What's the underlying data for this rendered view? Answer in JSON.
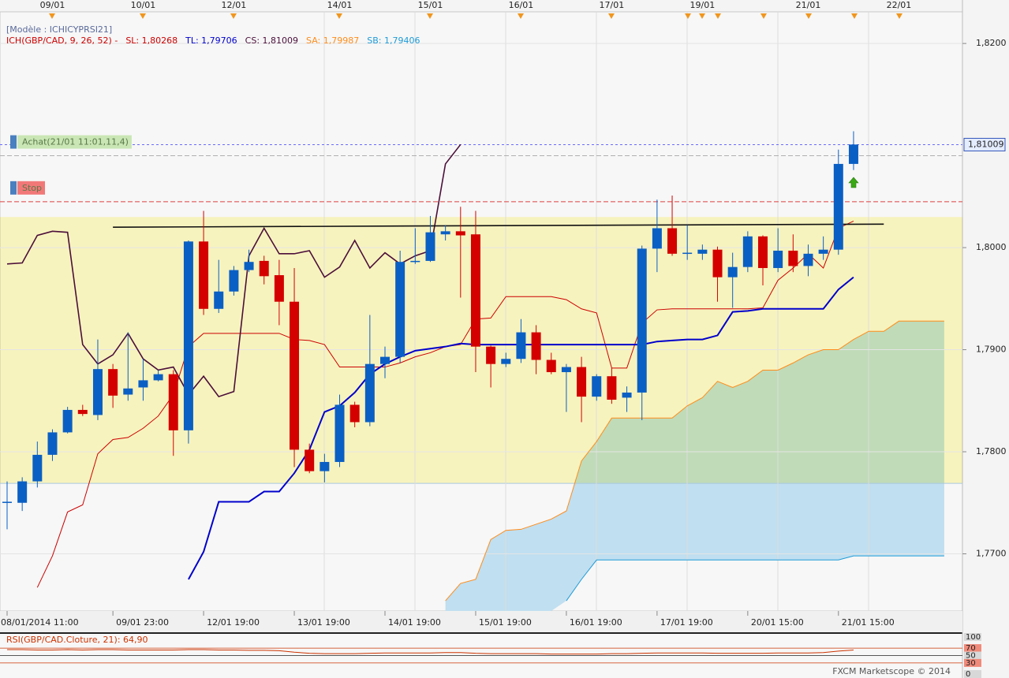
{
  "chart_data": {
    "type": "candlestick",
    "model_label": "[Modèle : ICHICYPRSI21]",
    "ich_label": "ICH(GBP/CAD, 9, 26, 52) -",
    "categories": [
      "08/01/2014 11:00",
      null,
      null,
      null,
      null,
      null,
      null,
      "09/01 23:00",
      null,
      null,
      null,
      null,
      null,
      "12/01 19:00",
      null,
      null,
      null,
      null,
      null,
      "13/01 19:00",
      null,
      null,
      null,
      null,
      null,
      "14/01 19:00",
      null,
      null,
      null,
      null,
      null,
      "15/01 19:00",
      null,
      null,
      null,
      null,
      null,
      "16/01 19:00",
      null,
      null,
      null,
      null,
      null,
      "17/01 19:00",
      null,
      null,
      null,
      null,
      null,
      "20/01 15:00",
      null,
      null,
      null,
      null,
      null,
      "21/01 15:00",
      null,
      null,
      null,
      null,
      null,
      null,
      null
    ],
    "top_categories": [
      null,
      null,
      null,
      "09/01",
      null,
      null,
      null,
      null,
      null,
      "10/01",
      null,
      null,
      null,
      null,
      null,
      "12/01",
      null,
      null,
      null,
      null,
      null,
      null,
      "14/01",
      null,
      null,
      null,
      null,
      null,
      "15/01",
      null,
      null,
      null,
      null,
      null,
      "16/01",
      null,
      null,
      null,
      null,
      null,
      "17/01",
      null,
      null,
      null,
      null,
      null,
      "19/01",
      null,
      null,
      null,
      null,
      null,
      null,
      "21/01",
      null,
      null,
      null,
      null,
      null,
      "22/01",
      null,
      null,
      null
    ],
    "open": [
      1.775,
      1.775,
      1.7771,
      1.7797,
      1.7819,
      1.7841,
      1.7836,
      1.7881,
      1.7856,
      1.7863,
      1.787,
      1.7876,
      1.7821,
      1.8006,
      1.794,
      1.7957,
      1.7978,
      1.7987,
      1.7973,
      1.7947,
      1.7802,
      1.7781,
      1.779,
      1.7846,
      1.7829,
      1.7886,
      1.7893,
      1.7986,
      1.7987,
      1.8013,
      1.8016,
      1.8013,
      1.7903,
      1.7886,
      1.7891,
      1.7917,
      1.789,
      1.7878,
      1.7883,
      1.7854,
      1.7874,
      1.7853,
      1.7858,
      1.7999,
      1.8019,
      1.7994,
      1.7994,
      1.7998,
      1.7971,
      1.7981,
      1.8011,
      1.798,
      1.7997,
      1.7982,
      1.7994,
      1.7998,
      1.8082,
      null,
      null,
      null,
      null,
      null,
      null
    ],
    "high": [
      1.7771,
      1.7775,
      1.781,
      1.7822,
      1.7844,
      1.7846,
      1.791,
      1.7886,
      1.7917,
      1.7891,
      1.788,
      1.788,
      1.8007,
      1.8036,
      1.7988,
      1.7982,
      1.7998,
      1.7992,
      1.7988,
      1.798,
      1.7808,
      1.7798,
      1.7856,
      1.7849,
      1.7934,
      1.7903,
      1.7997,
      1.8019,
      1.8031,
      1.8022,
      1.804,
      1.8036,
      1.7904,
      1.7897,
      1.793,
      1.7924,
      1.7897,
      1.7886,
      1.7893,
      1.7876,
      1.7882,
      1.7864,
      1.8002,
      1.8047,
      1.8051,
      1.8022,
      1.8003,
      1.8001,
      1.7995,
      1.8016,
      1.8012,
      1.8019,
      1.8013,
      1.8003,
      1.8011,
      1.8096,
      1.8114,
      null,
      null,
      null,
      null,
      null,
      null
    ],
    "low": [
      1.7724,
      1.7742,
      1.7765,
      1.7791,
      1.7818,
      1.7835,
      1.7831,
      1.7843,
      1.785,
      1.785,
      1.7869,
      1.7796,
      1.7808,
      1.7934,
      1.7936,
      1.7953,
      1.7976,
      1.7964,
      1.7924,
      1.7785,
      1.7779,
      1.777,
      1.7785,
      1.7824,
      1.7825,
      1.7872,
      1.7887,
      1.7984,
      1.7986,
      1.8007,
      1.7951,
      1.7878,
      1.7863,
      1.7883,
      1.7887,
      1.7876,
      1.7876,
      1.7839,
      1.7829,
      1.785,
      1.7847,
      1.7839,
      1.7831,
      1.7976,
      1.7992,
      1.7988,
      1.7988,
      1.7947,
      1.7941,
      1.7976,
      1.7963,
      1.7976,
      1.7976,
      1.7972,
      1.7988,
      1.7993,
      1.8076,
      null,
      null,
      null,
      null,
      null,
      null
    ],
    "close": [
      1.7751,
      1.7771,
      1.7797,
      1.7819,
      1.7841,
      1.7837,
      1.7881,
      1.7855,
      1.7862,
      1.787,
      1.7876,
      1.7821,
      1.8006,
      1.794,
      1.7957,
      1.7978,
      1.7986,
      1.7972,
      1.7947,
      1.7802,
      1.7781,
      1.779,
      1.7846,
      1.7829,
      1.7886,
      1.7893,
      1.7986,
      1.7987,
      1.8015,
      1.8016,
      1.8012,
      1.7903,
      1.7886,
      1.7891,
      1.7917,
      1.789,
      1.7878,
      1.7883,
      1.7854,
      1.7874,
      1.7851,
      1.7858,
      1.7999,
      1.8019,
      1.7994,
      1.7995,
      1.7998,
      1.7971,
      1.7981,
      1.8011,
      1.798,
      1.7997,
      1.7982,
      1.7994,
      1.7998,
      1.8082,
      1.8101,
      null,
      null,
      null,
      null,
      null,
      null
    ],
    "up_color": "#0a5fc4",
    "down_color": "#d40000",
    "series": [
      {
        "label": "SL: 1,80268",
        "color": "#cc0000",
        "values": [
          null,
          null,
          1.7667,
          1.7698,
          1.7741,
          1.7748,
          1.7798,
          1.7812,
          1.7814,
          1.7823,
          1.7835,
          1.7856,
          1.7903,
          1.7916,
          1.7916,
          1.7916,
          1.7916,
          1.7916,
          1.7916,
          1.791,
          1.7909,
          1.7905,
          1.7883,
          1.7883,
          1.7883,
          1.7883,
          1.7887,
          1.7893,
          1.7897,
          1.7903,
          1.7905,
          1.793,
          1.7931,
          1.7952,
          1.7952,
          1.7952,
          1.7952,
          1.7949,
          1.794,
          1.7936,
          1.7882,
          1.7882,
          1.7926,
          1.7939,
          1.794,
          1.794,
          1.794,
          1.794,
          1.794,
          1.794,
          1.7941,
          1.7968,
          1.798,
          1.7994,
          1.798,
          1.8019,
          1.8026,
          null,
          null,
          null,
          null,
          null,
          null
        ]
      },
      {
        "label": "TL: 1,79706",
        "color": "#0000cc",
        "values": [
          null,
          null,
          null,
          null,
          null,
          null,
          null,
          null,
          null,
          null,
          null,
          null,
          1.7675,
          1.7702,
          1.7751,
          1.7751,
          1.7751,
          1.7761,
          1.7761,
          1.7779,
          1.7802,
          1.7839,
          1.7845,
          1.7858,
          1.7876,
          1.7886,
          1.7893,
          1.7899,
          1.7901,
          1.7903,
          1.7906,
          1.7905,
          1.7905,
          1.7905,
          1.7905,
          1.7905,
          1.7905,
          1.7905,
          1.7905,
          1.7905,
          1.7905,
          1.7905,
          1.7905,
          1.7908,
          1.7909,
          1.791,
          1.791,
          1.7914,
          1.7937,
          1.7938,
          1.794,
          1.794,
          1.794,
          1.794,
          1.794,
          1.7959,
          1.7971,
          null,
          null,
          null,
          null,
          null,
          null
        ]
      },
      {
        "label": "CS: 1,81009",
        "color": "#4b0f3a",
        "values": [
          1.7984,
          1.7985,
          1.8012,
          1.8016,
          1.8015,
          1.7905,
          1.7886,
          1.7895,
          1.7916,
          1.7891,
          1.788,
          1.7883,
          1.7856,
          1.7874,
          1.7854,
          1.7859,
          1.7992,
          1.8019,
          1.7994,
          1.7994,
          1.7997,
          1.7971,
          1.7981,
          1.8007,
          1.798,
          1.7995,
          1.7984,
          1.7992,
          1.7997,
          1.8082,
          1.8101,
          null,
          null,
          null,
          null,
          null,
          null,
          null,
          null,
          null,
          null,
          null,
          null,
          null,
          null,
          null,
          null,
          null,
          null,
          null,
          null,
          null,
          null,
          null,
          null,
          null,
          null,
          null,
          null,
          null,
          null,
          null,
          null
        ]
      },
      {
        "label": "SA: 1,79987",
        "color": "#ff8c1a",
        "values": [
          null,
          null,
          null,
          null,
          null,
          null,
          null,
          null,
          null,
          null,
          null,
          null,
          null,
          null,
          null,
          null,
          null,
          null,
          null,
          null,
          null,
          null,
          null,
          null,
          null,
          null,
          null,
          null,
          null,
          1.7654,
          1.7671,
          1.7675,
          1.7714,
          1.7723,
          1.7724,
          1.7729,
          1.7734,
          1.7742,
          1.7791,
          1.781,
          1.7833,
          1.7833,
          1.7833,
          1.7833,
          1.7833,
          1.7845,
          1.7853,
          1.7869,
          1.7863,
          1.7869,
          1.788,
          1.788,
          1.7887,
          1.7895,
          1.79,
          1.79,
          1.791,
          1.7918,
          1.7918,
          1.7928,
          1.7928,
          1.7928,
          1.7928
        ]
      },
      {
        "label": "SB: 1,79406",
        "color": "#1e9bd7",
        "values": [
          null,
          null,
          null,
          null,
          null,
          null,
          null,
          null,
          null,
          null,
          null,
          null,
          null,
          null,
          null,
          null,
          null,
          null,
          null,
          null,
          null,
          null,
          null,
          null,
          null,
          null,
          null,
          null,
          null,
          null,
          null,
          null,
          null,
          null,
          null,
          null,
          null,
          1.7654,
          1.7675,
          1.7694,
          1.7694,
          1.7694,
          1.7694,
          1.7694,
          1.7694,
          1.7694,
          1.7694,
          1.7694,
          1.7694,
          1.7694,
          1.7694,
          1.7694,
          1.7694,
          1.7694,
          1.7694,
          1.7694,
          1.7698,
          1.7698,
          1.7698,
          1.7698,
          1.7698,
          1.7698,
          1.7698
        ]
      }
    ],
    "cloud_color": "#c0dff0",
    "zone": [
      1.7769,
      1.803
    ],
    "zone_color": "#fffbc4",
    "trendline": {
      "x": [
        7,
        58
      ],
      "y": [
        1.802,
        1.8023
      ],
      "color": "#111111"
    },
    "orders": [
      {
        "label": "Achat(21/01 11:01,11,4)",
        "value": 1.809,
        "color": "#c9e6b4",
        "line_color": "#b0b0b0"
      },
      {
        "label": "Stop",
        "value": 1.8045,
        "color": "#f27878",
        "line_color": "#e04040"
      }
    ],
    "last_price": {
      "value": 1.81009,
      "label": "1,81009"
    },
    "ylim": [
      1.7644,
      1.8231
    ],
    "yticks": [
      {
        "value": 1.82,
        "label": "1,8200"
      },
      {
        "value": 1.8,
        "label": "1,8000"
      },
      {
        "value": 1.79,
        "label": "1,7900"
      },
      {
        "value": 1.78,
        "label": "1,7800"
      },
      {
        "value": 1.77,
        "label": "1,7700"
      }
    ],
    "grid": true,
    "rsi": {
      "label": "RSI(GBP/CAD.Cloture, 21): 64,90",
      "color": "#cc3300",
      "values": [
        66,
        66,
        65,
        65,
        66,
        65,
        66,
        66,
        65,
        65,
        65,
        65,
        66,
        66,
        65,
        65,
        64,
        64,
        63,
        59,
        56,
        55,
        55,
        55,
        56,
        57,
        57,
        57,
        57,
        58,
        58,
        56,
        55,
        55,
        55,
        55,
        54,
        54,
        54,
        54,
        55,
        55,
        56,
        57,
        57,
        57,
        57,
        56,
        56,
        56,
        56,
        57,
        57,
        57,
        58,
        62,
        64.9,
        null,
        null,
        null,
        null,
        null,
        null
      ],
      "ylim": [
        0,
        100
      ],
      "yticks": [
        100,
        70,
        50,
        30,
        0
      ]
    },
    "footer": "FXCM Marketscope © 2014"
  }
}
